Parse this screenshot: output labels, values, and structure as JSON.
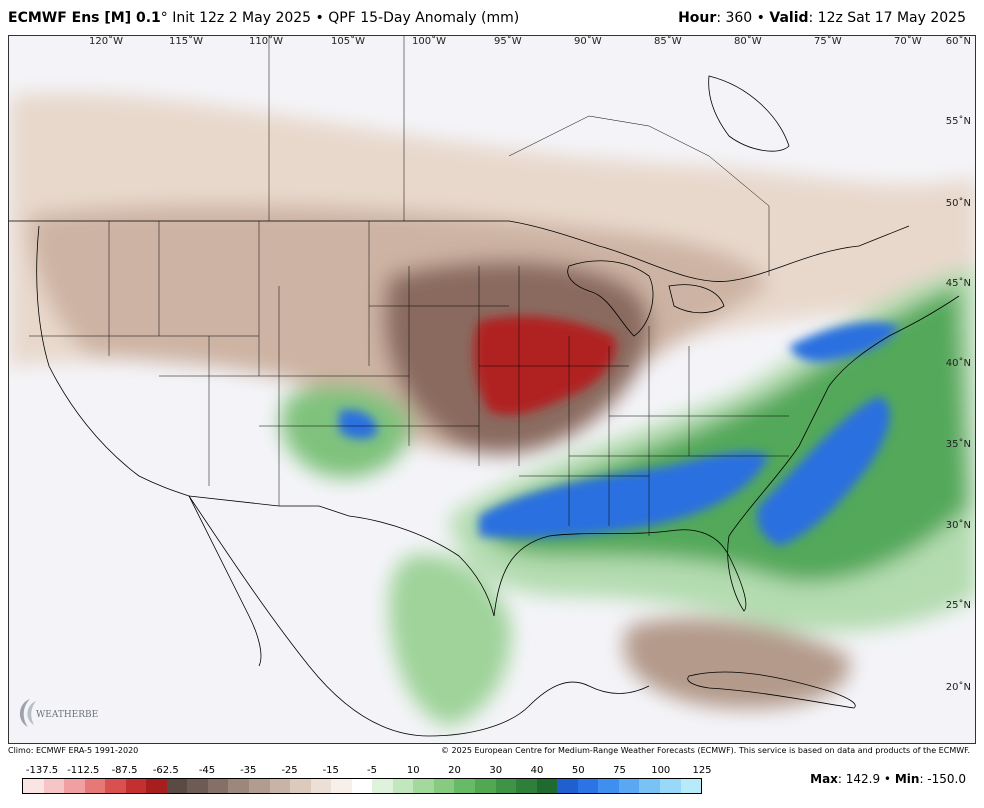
{
  "header": {
    "model": "ECMWF Ens [M] 0.1",
    "degree": "°",
    "init": "Init 12z 2 May 2025",
    "bullet": "•",
    "product": "QPF 15-Day Anomaly (mm)",
    "hour_label": "Hour",
    "hour_value": ": 360 •",
    "valid_label": "Valid",
    "valid_value": ": 12z Sat 17 May 2025"
  },
  "map": {
    "lon_labels": [
      "120˚W",
      "115˚W",
      "110˚W",
      "105˚W",
      "100˚W",
      "95˚W",
      "90˚W",
      "85˚W",
      "80˚W",
      "75˚W",
      "70˚W"
    ],
    "lat_labels": [
      "60˚N",
      "55˚N",
      "50˚N",
      "45˚N",
      "40˚N",
      "35˚N",
      "30˚N",
      "25˚N",
      "20˚N"
    ],
    "colors": {
      "dry_strong": "#b02424",
      "dry_mid": "#8a6a5e",
      "dry_light": "#cdb3a3",
      "dry_faint": "#e8d8cc",
      "wet_light": "#b4dcb0",
      "wet_mid": "#52a85a",
      "wet_dark": "#2f7d3b",
      "wet_blue": "#2c6fe0",
      "ocean": "#f4f4f8"
    }
  },
  "credits": {
    "climo": "Climo: ECMWF ERA-5 1991-2020",
    "copyright": "© 2025 European Centre for Medium-Range Weather Forecasts (ECMWF). This service is based on data and products of the ECMWF.",
    "logo_text": "WEATHERBELL"
  },
  "legend": {
    "labels": [
      "-137.5",
      "-112.5",
      "-87.5",
      "-62.5",
      "-45",
      "-35",
      "-25",
      "-15",
      "-5",
      "10",
      "20",
      "30",
      "40",
      "50",
      "75",
      "100",
      "125"
    ],
    "colors": [
      "#fbe4e4",
      "#f6c6c6",
      "#f0a0a0",
      "#e67878",
      "#d85050",
      "#c43030",
      "#a61e1e",
      "#5a4a44",
      "#6e5c54",
      "#857068",
      "#9c877c",
      "#b29c90",
      "#c8b4a6",
      "#dccabc",
      "#ece0d6",
      "#f7f0ea",
      "#ffffff",
      "#dff2dc",
      "#c2e6bd",
      "#a4d99e",
      "#86cb80",
      "#68bb66",
      "#50a850",
      "#3d9444",
      "#2e7f39",
      "#1f6a2e",
      "#1f5fcf",
      "#2c74e6",
      "#3e8ff0",
      "#5aa8f4",
      "#78c2f6",
      "#98d8f8",
      "#b8ebfa"
    ],
    "max_label": "Max",
    "max_value": ": 142.9 •",
    "min_label": "Min",
    "min_value": ": -150.0"
  }
}
